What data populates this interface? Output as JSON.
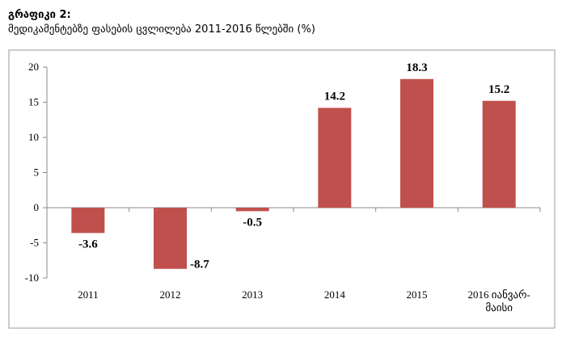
{
  "caption": {
    "title": "გრაფიკი 2:",
    "subtitle": "მედიკამენტებზე ფასების ცვლილება 2011-2016 წლებში (%)"
  },
  "chart_data": {
    "type": "bar",
    "categories": [
      "2011",
      "2012",
      "2013",
      "2014",
      "2015",
      [
        "2016 იანვარ-",
        "მაისი"
      ]
    ],
    "values": [
      -3.6,
      -8.7,
      -0.5,
      14.2,
      18.3,
      15.2
    ],
    "data_labels": [
      "-3.6",
      "-8.7",
      "-0.5",
      "14.2",
      "18.3",
      "15.2"
    ],
    "ylim": [
      -10,
      20
    ],
    "yticks": [
      20,
      15,
      10,
      5,
      0,
      -5,
      -10
    ],
    "bar_color": "#c0504d",
    "grid": false,
    "legend": "none"
  }
}
